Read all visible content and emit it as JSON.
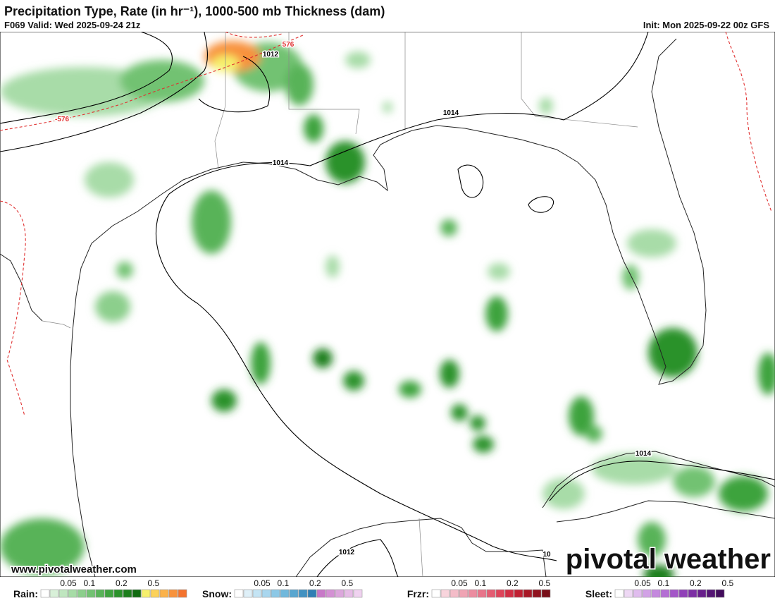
{
  "header": {
    "title": "Precipitation Type, Rate (in hr⁻¹), 1000-500 mb Thickness (dam)",
    "valid": "F069 Valid: Wed 2025-09-24 21z",
    "init": "Init: Mon 2025-09-22 00z GFS"
  },
  "map_labels": [
    "1012",
    "1014",
    "1014",
    "1014",
    "1012",
    "576",
    "-576",
    "10"
  ],
  "watermark": "www.pivotalweather.com",
  "logo": "pivotal weather",
  "legend": [
    {
      "label": "Rain:",
      "ticks": [
        "0.05",
        "0.1",
        "0.2",
        "0.5"
      ],
      "colors": [
        "#ffffff",
        "#d8f0d8",
        "#bfe6bf",
        "#a6dca6",
        "#8ccf8c",
        "#72c272",
        "#58b358",
        "#3ea33e",
        "#2a922a",
        "#1c7f1c",
        "#0f6b0f",
        "#f6f06c",
        "#fcd25a",
        "#fbb24a",
        "#f8923c",
        "#f4732e"
      ]
    },
    {
      "label": "Snow:",
      "ticks": [
        "0.05",
        "0.1",
        "0.2",
        "0.5"
      ],
      "colors": [
        "#ffffff",
        "#dff0f8",
        "#c4e4f4",
        "#a8d6ee",
        "#8cc8e6",
        "#70b8dc",
        "#58a6d0",
        "#4292c2",
        "#2f7fb4",
        "#c878c8",
        "#d490d4",
        "#dca6dc",
        "#e6bce6",
        "#f0d2f0"
      ]
    },
    {
      "label": "Frzr:",
      "ticks": [
        "0.05",
        "0.1",
        "0.2",
        "0.5"
      ],
      "colors": [
        "#ffffff",
        "#f8d4dc",
        "#f4bcc8",
        "#f0a4b4",
        "#ec8ca0",
        "#e8748a",
        "#e45c72",
        "#de445a",
        "#d22e44",
        "#c02032",
        "#a81826",
        "#90121e",
        "#780e18"
      ]
    },
    {
      "label": "Sleet:",
      "ticks": [
        "0.05",
        "0.1",
        "0.2",
        "0.5"
      ],
      "colors": [
        "#ffffff",
        "#eed8f4",
        "#e0bcee",
        "#d2a2e6",
        "#c488de",
        "#b46ed4",
        "#a456c8",
        "#9040b8",
        "#7c2ea4",
        "#681e8c",
        "#541474",
        "#420c5c"
      ]
    }
  ]
}
